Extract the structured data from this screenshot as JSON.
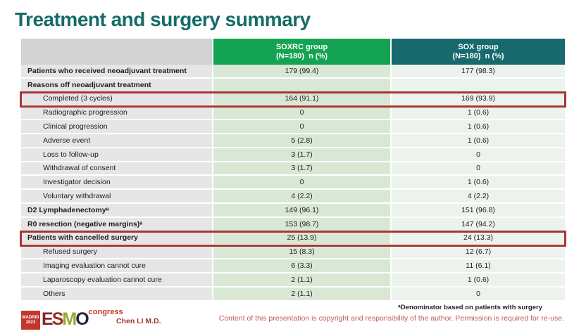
{
  "slide": {
    "title": "Treatment and surgery summary",
    "presenter": "Chen LI M.D.",
    "footnote": "ᵃDenominator based on patients with surgery",
    "copyright": "Content of this presentation is copyright and responsibility of the author. Permission is required for re-use.",
    "logo": {
      "city": "MADRID",
      "year": "2023",
      "letter_e": "E",
      "letter_s": "S",
      "letter_m": "M",
      "letter_o": "O",
      "congress": "congress"
    }
  },
  "colors": {
    "title_teal": "#156b68",
    "soxrc_header_green": "#13a352",
    "sox_header_teal": "#17696e",
    "highlight_red": "#a53732",
    "label_gray": "#e6e6e6",
    "soxrc_cell_green": "#d9e8d5",
    "sox_cell_green": "#ecf3ed"
  },
  "table": {
    "columns": [
      {
        "name": "SOXRC group",
        "n": "(N=180)  n (%)"
      },
      {
        "name": "SOX group",
        "n": "(N=180)  n (%)"
      }
    ],
    "rows": [
      {
        "label": "Patients who received neoadjuvant treatment",
        "soxrc": "179 (99.4)",
        "sox": "177 (98.3)",
        "bold": true,
        "indent": false,
        "highlight": false
      },
      {
        "label": "Reasons off neoadjuvant treatment",
        "soxrc": "",
        "sox": "",
        "bold": true,
        "indent": false,
        "highlight": false
      },
      {
        "label": "Completed (3 cycles)",
        "soxrc": "164 (91.1)",
        "sox": "169 (93.9)",
        "bold": false,
        "indent": true,
        "highlight": true
      },
      {
        "label": "Radiographic progression",
        "soxrc": "0",
        "sox": "1 (0.6)",
        "bold": false,
        "indent": true,
        "highlight": false
      },
      {
        "label": "Clinical progression",
        "soxrc": "0",
        "sox": "1 (0.6)",
        "bold": false,
        "indent": true,
        "highlight": false
      },
      {
        "label": "Adverse event",
        "soxrc": "5 (2.8)",
        "sox": "1 (0.6)",
        "bold": false,
        "indent": true,
        "highlight": false
      },
      {
        "label": "Loss to follow-up",
        "soxrc": "3 (1.7)",
        "sox": "0",
        "bold": false,
        "indent": true,
        "highlight": false
      },
      {
        "label": "Withdrawal of consent",
        "soxrc": "3 (1.7)",
        "sox": "0",
        "bold": false,
        "indent": true,
        "highlight": false
      },
      {
        "label": "Investigator decision",
        "soxrc": "0",
        "sox": "1 (0.6)",
        "bold": false,
        "indent": true,
        "highlight": false
      },
      {
        "label": "Voluntary withdrawal",
        "soxrc": "4 (2.2)",
        "sox": "4 (2.2)",
        "bold": false,
        "indent": true,
        "highlight": false
      },
      {
        "label": "D2 Lymphadenectomyᵃ",
        "soxrc": "149 (96.1)",
        "sox": "151 (96.8)",
        "bold": true,
        "indent": false,
        "highlight": false
      },
      {
        "label": "R0 resection (negative margins)ᵃ",
        "soxrc": "153 (98.7)",
        "sox": "147 (94.2)",
        "bold": true,
        "indent": false,
        "highlight": false
      },
      {
        "label": "Patients with cancelled surgery",
        "soxrc": "25 (13.9)",
        "sox": "24 (13.3)",
        "bold": true,
        "indent": false,
        "highlight": true
      },
      {
        "label": "Refused surgery",
        "soxrc": "15 (8.3)",
        "sox": "12 (6.7)",
        "bold": false,
        "indent": true,
        "highlight": false
      },
      {
        "label": "Imaging evaluation cannot cure",
        "soxrc": "6 (3.3)",
        "sox": "11 (6.1)",
        "bold": false,
        "indent": true,
        "highlight": false
      },
      {
        "label": "Laparoscopy evaluation cannot cure",
        "soxrc": "2 (1.1)",
        "sox": "1 (0.6)",
        "bold": false,
        "indent": true,
        "highlight": false
      },
      {
        "label": "Others",
        "soxrc": "2 (1.1)",
        "sox": "0",
        "bold": false,
        "indent": true,
        "highlight": false
      }
    ]
  }
}
